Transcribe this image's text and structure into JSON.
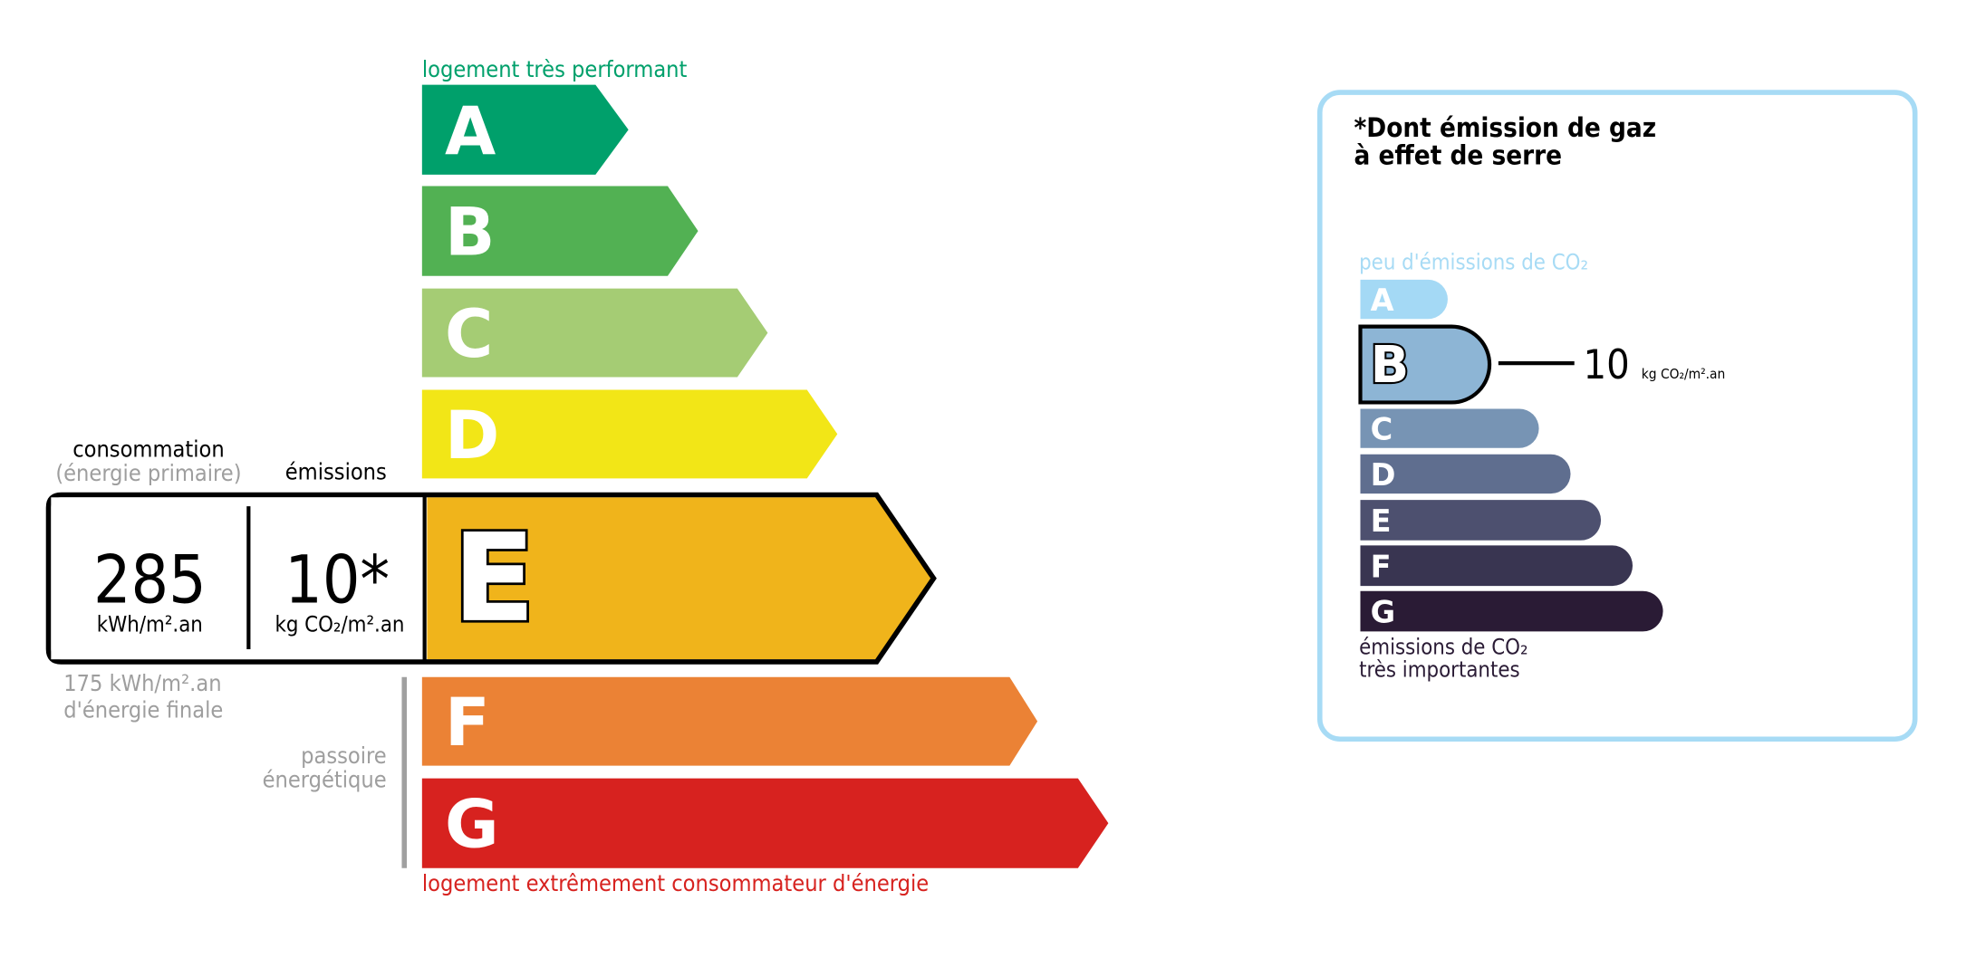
{
  "energy": {
    "top_label": "logement très performant",
    "bottom_label": "logement extrêmement consommateur d'énergie",
    "classes": [
      {
        "letter": "A",
        "color": "#00a06b"
      },
      {
        "letter": "B",
        "color": "#52b153"
      },
      {
        "letter": "C",
        "color": "#a5cc74"
      },
      {
        "letter": "D",
        "color": "#f2e617"
      },
      {
        "letter": "E",
        "color": "#f0b41b"
      },
      {
        "letter": "F",
        "color": "#eb8235"
      },
      {
        "letter": "G",
        "color": "#d7221f"
      }
    ],
    "current_class": "E",
    "consumption_label": "consommation",
    "consumption_sublabel": "(énergie primaire)",
    "emissions_label": "émissions",
    "consumption_value": "285",
    "consumption_unit": "kWh/m².an",
    "emissions_value": "10*",
    "emissions_unit": "kg CO₂/m².an",
    "final_energy_line1": "175 kWh/m².an",
    "final_energy_line2": "d'énergie finale",
    "passoire_line1": "passoire",
    "passoire_line2": "énergétique"
  },
  "ges": {
    "title_line1": "*Dont émission de gaz",
    "title_line2": "à effet de serre",
    "top_label": "peu d'émissions de CO₂",
    "bottom_line1": "émissions de CO₂",
    "bottom_line2": "très importantes",
    "classes": [
      {
        "letter": "A",
        "color": "#a4d9f5"
      },
      {
        "letter": "B",
        "color": "#8db5d5"
      },
      {
        "letter": "C",
        "color": "#7794b4"
      },
      {
        "letter": "D",
        "color": "#5f6e8f"
      },
      {
        "letter": "E",
        "color": "#4d506f"
      },
      {
        "letter": "F",
        "color": "#393551"
      },
      {
        "letter": "G",
        "color": "#2a1b35"
      }
    ],
    "current_class": "B",
    "value": "10",
    "unit": "kg CO₂/m².an",
    "border_color": "#a7dbf5"
  }
}
